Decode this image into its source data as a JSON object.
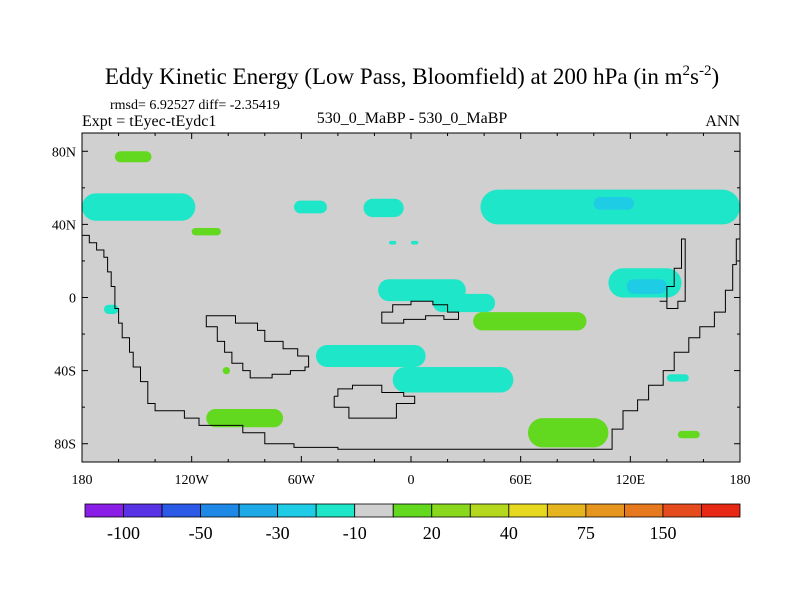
{
  "chart_data": {
    "type": "heatmap",
    "title_main": "Eddy Kinetic Energy (Low Pass, Bloomfield) at 200 hPa (in m",
    "title_unit_sup1": "2",
    "title_unit_s": "s",
    "title_unit_sup2": "-2",
    "title_close": ")",
    "stats": "rmsd= 6.92527 diff= -2.35419",
    "expt": "Expt = tEyec-tEydc1",
    "case": "530_0_MaBP - 530_0_MaBP",
    "period": "ANN",
    "xlim": [
      -180,
      180
    ],
    "ylim": [
      -90,
      90
    ],
    "x_ticks": [
      {
        "value": -180,
        "label": "180"
      },
      {
        "value": -120,
        "label": "120W"
      },
      {
        "value": -60,
        "label": "60W"
      },
      {
        "value": 0,
        "label": "0"
      },
      {
        "value": 60,
        "label": "60E"
      },
      {
        "value": 120,
        "label": "120E"
      },
      {
        "value": 180,
        "label": "180"
      }
    ],
    "y_ticks": [
      {
        "value": 80,
        "label": "80N"
      },
      {
        "value": 40,
        "label": "40N"
      },
      {
        "value": 0,
        "label": "0"
      },
      {
        "value": -40,
        "label": "40S"
      },
      {
        "value": -80,
        "label": "80S"
      }
    ],
    "background_color": "#d0d0d0",
    "colorbar": {
      "colors": [
        "#8a1ee6",
        "#5a32e6",
        "#2a5ae6",
        "#1e88e6",
        "#1eaae6",
        "#1ecce6",
        "#1ee6c8",
        "#d0d0d0",
        "#62d81e",
        "#8ad81e",
        "#b4d81e",
        "#e6d81e",
        "#e6b41e",
        "#e6961e",
        "#e6781e",
        "#e64b1e",
        "#e62814"
      ],
      "labels": [
        {
          "after": 1,
          "text": "-100"
        },
        {
          "after": 3,
          "text": "-50"
        },
        {
          "after": 5,
          "text": "-30"
        },
        {
          "after": 7,
          "text": "-10"
        },
        {
          "after": 9,
          "text": "20"
        },
        {
          "after": 11,
          "text": "40"
        },
        {
          "after": 13,
          "text": "75"
        },
        {
          "after": 15,
          "text": "150"
        }
      ]
    },
    "regions": [
      {
        "name": "tropic-band-west",
        "lon": [
          -180,
          -118
        ],
        "lat": [
          42,
          57
        ],
        "color": "#1ee6c8"
      },
      {
        "name": "midlat-blob-60w",
        "lon": [
          -64,
          -46
        ],
        "lat": [
          46,
          53
        ],
        "color": "#1ee6c8"
      },
      {
        "name": "midlat-blob-20w",
        "lon": [
          -26,
          -4
        ],
        "lat": [
          44,
          54
        ],
        "color": "#1ee6c8"
      },
      {
        "name": "midlat-band-east",
        "lon": [
          38,
          180
        ],
        "lat": [
          40,
          59
        ],
        "color": "#1ee6c8"
      },
      {
        "name": "midlat-core-east",
        "lon": [
          100,
          122
        ],
        "lat": [
          48,
          55
        ],
        "color": "#1ecce6"
      },
      {
        "name": "small-arctic-green",
        "lon": [
          -162,
          -142
        ],
        "lat": [
          74,
          80
        ],
        "color": "#62d81e"
      },
      {
        "name": "small-green-40n",
        "lon": [
          -120,
          -104
        ],
        "lat": [
          34,
          38
        ],
        "color": "#62d81e"
      },
      {
        "name": "equator-blob-center",
        "lon": [
          -18,
          30
        ],
        "lat": [
          -2,
          10
        ],
        "color": "#1ee6c8"
      },
      {
        "name": "equator-blob-center2",
        "lon": [
          12,
          46
        ],
        "lat": [
          -8,
          2
        ],
        "color": "#1ee6c8"
      },
      {
        "name": "equator-green-east",
        "lon": [
          34,
          96
        ],
        "lat": [
          -18,
          -8
        ],
        "color": "#62d81e"
      },
      {
        "name": "indian-ocean-blob",
        "lon": [
          108,
          148
        ],
        "lat": [
          0,
          16
        ],
        "color": "#1ee6c8"
      },
      {
        "name": "indian-ocean-core",
        "lon": [
          118,
          140
        ],
        "lat": [
          2,
          10
        ],
        "color": "#1ecce6"
      },
      {
        "name": "small-west-blob",
        "lon": [
          -168,
          -160
        ],
        "lat": [
          -9,
          -4
        ],
        "color": "#1ee6c8"
      },
      {
        "name": "southern-cyan-west",
        "lon": [
          -52,
          8
        ],
        "lat": [
          -38,
          -26
        ],
        "color": "#1ee6c8"
      },
      {
        "name": "southern-cyan-east",
        "lon": [
          -10,
          56
        ],
        "lat": [
          -52,
          -38
        ],
        "color": "#1ee6c8"
      },
      {
        "name": "southern-green-west",
        "lon": [
          -112,
          -70
        ],
        "lat": [
          -71,
          -61
        ],
        "color": "#62d81e"
      },
      {
        "name": "southern-green-east",
        "lon": [
          64,
          108
        ],
        "lat": [
          -82,
          -66
        ],
        "color": "#62d81e"
      },
      {
        "name": "small-green-140e",
        "lon": [
          146,
          158
        ],
        "lat": [
          -77,
          -73
        ],
        "color": "#62d81e"
      },
      {
        "name": "small-cyan-150e",
        "lon": [
          140,
          152
        ],
        "lat": [
          -46,
          -42
        ],
        "color": "#1ee6c8"
      },
      {
        "name": "tiny-green-100w",
        "lon": [
          -103,
          -99
        ],
        "lat": [
          -42,
          -38
        ],
        "color": "#62d81e"
      },
      {
        "name": "tiny-cyan-10e",
        "lon": [
          0,
          4
        ],
        "lat": [
          29,
          31
        ],
        "color": "#1ee6c8"
      },
      {
        "name": "tiny-cyan-5w",
        "lon": [
          -12,
          -8
        ],
        "lat": [
          29,
          31
        ],
        "color": "#1ee6c8"
      }
    ],
    "continents": [
      {
        "name": "western-continent",
        "points": [
          [
            -180,
            34
          ],
          [
            -176,
            34
          ],
          [
            -176,
            30
          ],
          [
            -172,
            30
          ],
          [
            -172,
            26
          ],
          [
            -168,
            26
          ],
          [
            -168,
            22
          ],
          [
            -166,
            22
          ],
          [
            -166,
            14
          ],
          [
            -164,
            14
          ],
          [
            -164,
            6
          ],
          [
            -162,
            6
          ],
          [
            -162,
            -6
          ],
          [
            -160,
            -6
          ],
          [
            -160,
            -14
          ],
          [
            -158,
            -14
          ],
          [
            -158,
            -22
          ],
          [
            -154,
            -22
          ],
          [
            -154,
            -30
          ],
          [
            -152,
            -30
          ],
          [
            -152,
            -38
          ],
          [
            -148,
            -38
          ],
          [
            -148,
            -46
          ],
          [
            -144,
            -46
          ],
          [
            -144,
            -58
          ],
          [
            -140,
            -58
          ],
          [
            -140,
            -62
          ],
          [
            -124,
            -62
          ],
          [
            -124,
            -66
          ],
          [
            -116,
            -66
          ],
          [
            -116,
            -70
          ],
          [
            -92,
            -70
          ],
          [
            -92,
            -74
          ],
          [
            -80,
            -74
          ],
          [
            -80,
            -80
          ],
          [
            -64,
            -80
          ],
          [
            -64,
            -82
          ],
          [
            -40,
            -82
          ],
          [
            -40,
            -83
          ],
          [
            110,
            -83
          ],
          [
            110,
            -72
          ],
          [
            116,
            -72
          ],
          [
            116,
            -62
          ],
          [
            124,
            -62
          ],
          [
            124,
            -56
          ],
          [
            130,
            -56
          ],
          [
            130,
            -48
          ],
          [
            138,
            -48
          ],
          [
            138,
            -40
          ],
          [
            144,
            -40
          ],
          [
            144,
            -30
          ],
          [
            152,
            -30
          ],
          [
            152,
            -22
          ],
          [
            158,
            -22
          ],
          [
            158,
            -16
          ],
          [
            166,
            -16
          ],
          [
            166,
            -8
          ],
          [
            172,
            -8
          ],
          [
            172,
            4
          ],
          [
            176,
            4
          ],
          [
            176,
            18
          ],
          [
            178,
            18
          ],
          [
            178,
            32
          ],
          [
            180,
            32
          ]
        ]
      },
      {
        "name": "east-peninsula",
        "points": [
          [
            136,
            -2
          ],
          [
            140,
            -2
          ],
          [
            140,
            6
          ],
          [
            144,
            6
          ],
          [
            144,
            16
          ],
          [
            148,
            16
          ],
          [
            148,
            32
          ],
          [
            150,
            32
          ],
          [
            150,
            -2
          ],
          [
            146,
            -2
          ],
          [
            146,
            -6
          ],
          [
            140,
            -6
          ],
          [
            140,
            -2
          ]
        ]
      },
      {
        "name": "southern-inner-lake",
        "points": [
          [
            -112,
            -12
          ],
          [
            -112,
            -16
          ],
          [
            -106,
            -16
          ],
          [
            -106,
            -24
          ],
          [
            -102,
            -24
          ],
          [
            -102,
            -30
          ],
          [
            -98,
            -30
          ],
          [
            -98,
            -36
          ],
          [
            -92,
            -36
          ],
          [
            -92,
            -40
          ],
          [
            -88,
            -40
          ],
          [
            -88,
            -44
          ],
          [
            -76,
            -44
          ],
          [
            -76,
            -42
          ],
          [
            -66,
            -42
          ],
          [
            -66,
            -40
          ],
          [
            -58,
            -40
          ],
          [
            -58,
            -38
          ],
          [
            -56,
            -38
          ],
          [
            -56,
            -32
          ],
          [
            -62,
            -32
          ],
          [
            -62,
            -28
          ],
          [
            -70,
            -28
          ],
          [
            -70,
            -24
          ],
          [
            -80,
            -24
          ],
          [
            -80,
            -18
          ],
          [
            -84,
            -18
          ],
          [
            -84,
            -14
          ],
          [
            -96,
            -14
          ],
          [
            -96,
            -10
          ],
          [
            -112,
            -10
          ],
          [
            -112,
            -12
          ]
        ]
      },
      {
        "name": "southern-island",
        "points": [
          [
            -42,
            -54
          ],
          [
            -42,
            -60
          ],
          [
            -34,
            -60
          ],
          [
            -34,
            -66
          ],
          [
            -8,
            -66
          ],
          [
            -8,
            -58
          ],
          [
            2,
            -58
          ],
          [
            2,
            -54
          ],
          [
            -4,
            -54
          ],
          [
            -4,
            -52
          ],
          [
            -16,
            -52
          ],
          [
            -16,
            -48
          ],
          [
            -32,
            -48
          ],
          [
            -32,
            -50
          ],
          [
            -40,
            -50
          ],
          [
            -40,
            -54
          ],
          [
            -42,
            -54
          ]
        ]
      },
      {
        "name": "equator-coast",
        "points": [
          [
            -16,
            -12
          ],
          [
            -16,
            -8
          ],
          [
            -10,
            -8
          ],
          [
            -10,
            -4
          ],
          [
            0,
            -4
          ],
          [
            0,
            -2
          ],
          [
            12,
            -2
          ],
          [
            12,
            -4
          ],
          [
            20,
            -4
          ],
          [
            20,
            -8
          ],
          [
            26,
            -8
          ],
          [
            26,
            -12
          ],
          [
            18,
            -12
          ],
          [
            18,
            -10
          ],
          [
            8,
            -10
          ],
          [
            8,
            -12
          ],
          [
            -4,
            -12
          ],
          [
            -4,
            -14
          ],
          [
            -16,
            -14
          ],
          [
            -16,
            -12
          ]
        ]
      }
    ]
  }
}
